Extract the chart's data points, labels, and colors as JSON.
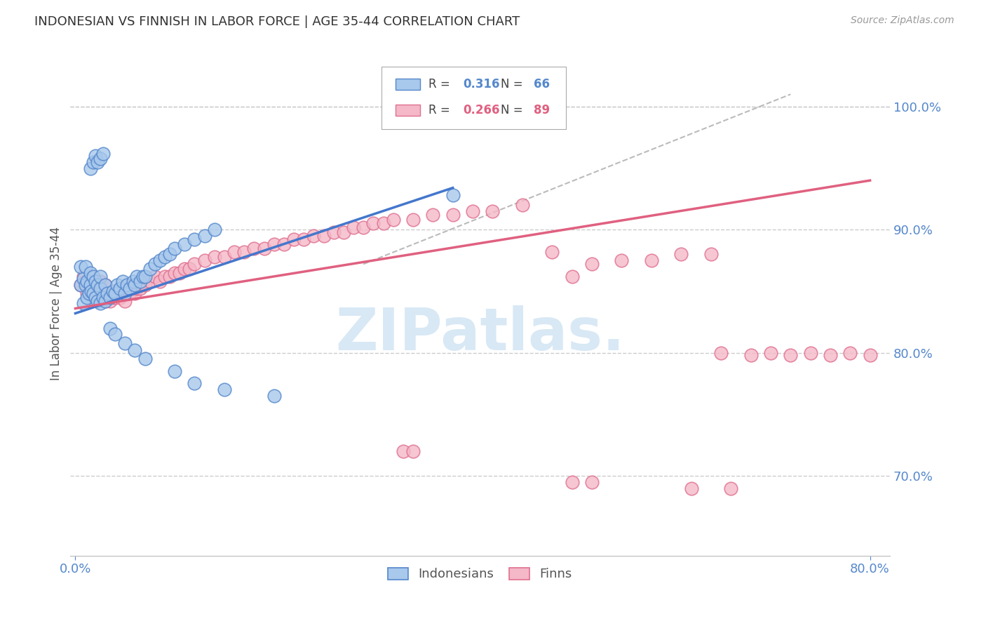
{
  "title": "INDONESIAN VS FINNISH IN LABOR FORCE | AGE 35-44 CORRELATION CHART",
  "source": "Source: ZipAtlas.com",
  "ylabel": "In Labor Force | Age 35-44",
  "xlim": [
    -0.005,
    0.82
  ],
  "ylim": [
    0.635,
    1.045
  ],
  "yticks": [
    0.7,
    0.8,
    0.9,
    1.0
  ],
  "yticklabels": [
    "70.0%",
    "80.0%",
    "90.0%",
    "100.0%"
  ],
  "xtick_left": 0.0,
  "xtick_right": 0.8,
  "legend_blue_r": "0.316",
  "legend_blue_n": "66",
  "legend_pink_r": "0.266",
  "legend_pink_n": "89",
  "legend_label_blue": "Indonesians",
  "legend_label_pink": "Finns",
  "blue_fill": "#A8C8EC",
  "pink_fill": "#F4B8C8",
  "blue_edge": "#5588CC",
  "pink_edge": "#E07090",
  "blue_line": "#4477CC",
  "pink_line": "#E06080",
  "grid_color": "#CCCCCC",
  "axis_color": "#5588CC",
  "text_color": "#333333",
  "watermark_text": "ZIPatlas.",
  "watermark_color": "#D8E8F5",
  "blue_line_x0": 0.0,
  "blue_line_y0": 0.832,
  "blue_line_x1": 0.38,
  "blue_line_y1": 0.934,
  "pink_line_x0": 0.0,
  "pink_line_y0": 0.836,
  "pink_line_x1": 0.8,
  "pink_line_y1": 0.94,
  "ref_line_x0": 0.29,
  "ref_line_y0": 0.872,
  "ref_line_x1": 0.72,
  "ref_line_y1": 1.01,
  "indonesian_x": [
    0.005,
    0.005,
    0.008,
    0.008,
    0.01,
    0.01,
    0.012,
    0.012,
    0.014,
    0.015,
    0.015,
    0.016,
    0.018,
    0.018,
    0.02,
    0.02,
    0.022,
    0.022,
    0.025,
    0.025,
    0.025,
    0.028,
    0.03,
    0.03,
    0.032,
    0.035,
    0.038,
    0.04,
    0.042,
    0.045,
    0.048,
    0.05,
    0.052,
    0.055,
    0.058,
    0.06,
    0.062,
    0.065,
    0.068,
    0.07,
    0.075,
    0.08,
    0.085,
    0.09,
    0.095,
    0.1,
    0.11,
    0.12,
    0.13,
    0.14,
    0.015,
    0.018,
    0.02,
    0.022,
    0.025,
    0.028,
    0.035,
    0.04,
    0.05,
    0.06,
    0.07,
    0.1,
    0.12,
    0.15,
    0.2,
    0.38
  ],
  "indonesian_y": [
    0.855,
    0.87,
    0.84,
    0.86,
    0.855,
    0.87,
    0.845,
    0.858,
    0.848,
    0.855,
    0.865,
    0.85,
    0.848,
    0.862,
    0.845,
    0.858,
    0.842,
    0.855,
    0.84,
    0.852,
    0.862,
    0.845,
    0.842,
    0.855,
    0.848,
    0.845,
    0.85,
    0.848,
    0.855,
    0.852,
    0.858,
    0.848,
    0.855,
    0.852,
    0.858,
    0.855,
    0.862,
    0.858,
    0.862,
    0.862,
    0.868,
    0.872,
    0.875,
    0.878,
    0.88,
    0.885,
    0.888,
    0.892,
    0.895,
    0.9,
    0.95,
    0.955,
    0.96,
    0.955,
    0.958,
    0.962,
    0.82,
    0.815,
    0.808,
    0.802,
    0.795,
    0.785,
    0.775,
    0.77,
    0.765,
    0.928
  ],
  "finn_x": [
    0.005,
    0.008,
    0.01,
    0.012,
    0.014,
    0.015,
    0.016,
    0.018,
    0.02,
    0.02,
    0.022,
    0.025,
    0.025,
    0.028,
    0.03,
    0.03,
    0.032,
    0.035,
    0.038,
    0.04,
    0.042,
    0.045,
    0.048,
    0.05,
    0.052,
    0.055,
    0.058,
    0.06,
    0.062,
    0.065,
    0.068,
    0.07,
    0.075,
    0.08,
    0.085,
    0.09,
    0.095,
    0.1,
    0.105,
    0.11,
    0.115,
    0.12,
    0.13,
    0.14,
    0.15,
    0.16,
    0.17,
    0.18,
    0.19,
    0.2,
    0.21,
    0.22,
    0.23,
    0.24,
    0.25,
    0.26,
    0.27,
    0.28,
    0.29,
    0.3,
    0.31,
    0.32,
    0.34,
    0.36,
    0.38,
    0.4,
    0.42,
    0.45,
    0.48,
    0.5,
    0.52,
    0.55,
    0.58,
    0.61,
    0.64,
    0.65,
    0.68,
    0.7,
    0.72,
    0.74,
    0.76,
    0.78,
    0.8,
    0.62,
    0.66,
    0.33,
    0.34,
    0.5,
    0.52
  ],
  "finn_y": [
    0.855,
    0.862,
    0.858,
    0.848,
    0.855,
    0.862,
    0.848,
    0.855,
    0.848,
    0.858,
    0.845,
    0.848,
    0.858,
    0.845,
    0.842,
    0.855,
    0.848,
    0.842,
    0.848,
    0.845,
    0.848,
    0.845,
    0.852,
    0.842,
    0.848,
    0.848,
    0.855,
    0.848,
    0.852,
    0.852,
    0.858,
    0.855,
    0.858,
    0.862,
    0.858,
    0.862,
    0.862,
    0.865,
    0.865,
    0.868,
    0.868,
    0.872,
    0.875,
    0.878,
    0.878,
    0.882,
    0.882,
    0.885,
    0.885,
    0.888,
    0.888,
    0.892,
    0.892,
    0.895,
    0.895,
    0.898,
    0.898,
    0.902,
    0.902,
    0.905,
    0.905,
    0.908,
    0.908,
    0.912,
    0.912,
    0.915,
    0.915,
    0.92,
    0.882,
    0.862,
    0.872,
    0.875,
    0.875,
    0.88,
    0.88,
    0.8,
    0.798,
    0.8,
    0.798,
    0.8,
    0.798,
    0.8,
    0.798,
    0.69,
    0.69,
    0.72,
    0.72,
    0.695,
    0.695
  ]
}
